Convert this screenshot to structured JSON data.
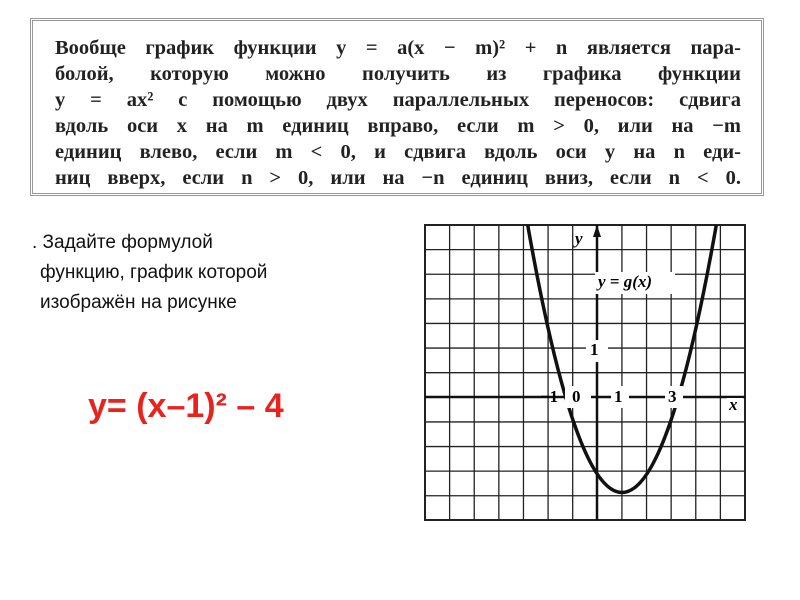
{
  "textbook": {
    "lines": [
      "Вообще график функции y = a(x − m)² + n является пара-",
      "болой, которую можно получить из графика функции",
      "y = ax² с помощью двух параллельных переносов: сдвига",
      "вдоль оси x на m единиц вправо, если m > 0, или на −m",
      "единиц влево, если m < 0, и сдвига вдоль оси y на n еди-",
      "ниц вверх, если n > 0, или на −n единиц вниз, если n < 0."
    ]
  },
  "task": {
    "lines": [
      ". Задайте формулой",
      "функцию,  график которой",
      "изображён на рисунке"
    ]
  },
  "answer": "у= (х–1)² – 4",
  "graph": {
    "y_axis": "y",
    "x_axis": "x",
    "function_label": "y = g(x)",
    "origin": "0",
    "one_y": "1",
    "minus_one_x": "−1",
    "one_x": "1",
    "three_x": "3"
  }
}
